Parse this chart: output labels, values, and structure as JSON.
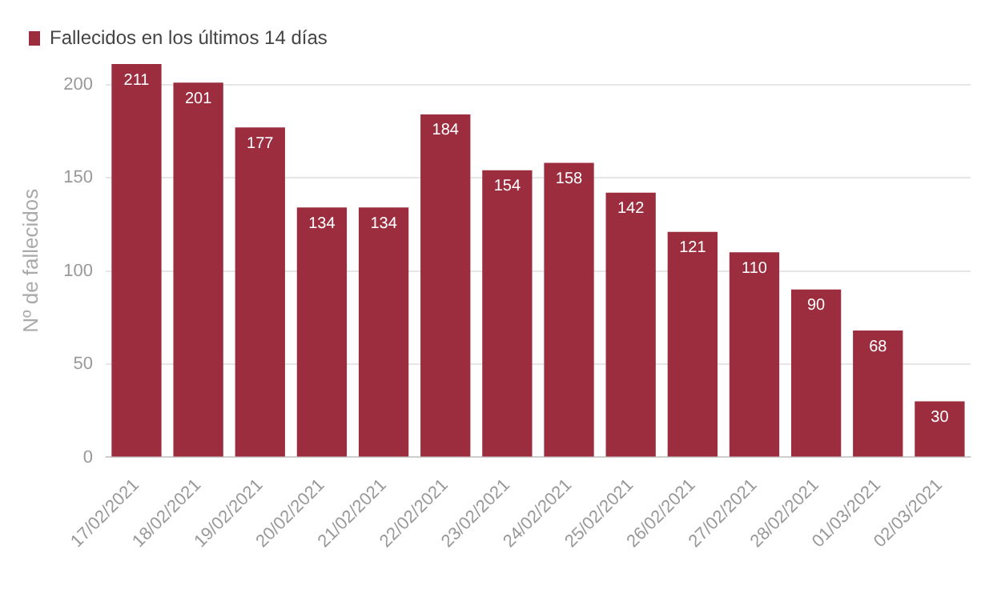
{
  "chart_data": {
    "type": "bar",
    "ylabel": "Nº de fallecidos",
    "categories": [
      "17/02/2021",
      "18/02/2021",
      "19/02/2021",
      "20/02/2021",
      "21/02/2021",
      "22/02/2021",
      "23/02/2021",
      "24/02/2021",
      "25/02/2021",
      "26/02/2021",
      "27/02/2021",
      "28/02/2021",
      "01/03/2021",
      "02/03/2021"
    ],
    "series": [
      {
        "name": "Fallecidos en los últimos 14 días",
        "color": "#9b2d3f",
        "values": [
          211,
          201,
          177,
          134,
          134,
          184,
          154,
          158,
          142,
          121,
          110,
          90,
          68,
          30
        ]
      }
    ],
    "ylim": [
      0,
      211
    ],
    "yticks": [
      0,
      50,
      100,
      150,
      200
    ],
    "grid": "y",
    "legend": "top left",
    "data_labels": true
  }
}
